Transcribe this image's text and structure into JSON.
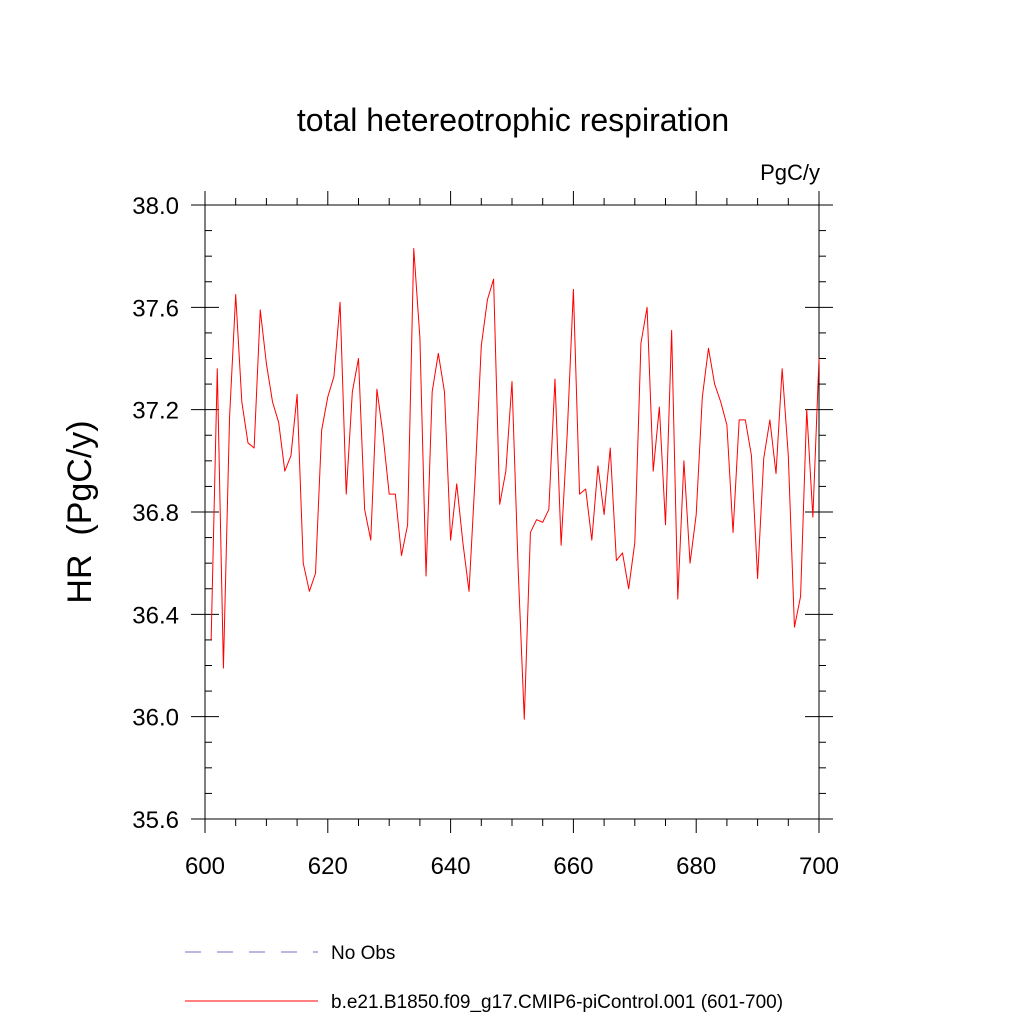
{
  "chart_data": {
    "type": "line",
    "title": "total hetereotrophic respiration",
    "units_label": "PgC/y",
    "ylabel": "HR  (PgC/y)",
    "xlabel": "",
    "xlim": [
      600,
      700
    ],
    "ylim": [
      35.6,
      38.0
    ],
    "x_ticks": [
      600,
      620,
      640,
      660,
      680,
      700
    ],
    "x_tick_labels": [
      "600",
      "620",
      "640",
      "660",
      "680",
      "700"
    ],
    "y_ticks": [
      35.6,
      36.0,
      36.4,
      36.8,
      37.2,
      37.6,
      38.0
    ],
    "y_tick_labels": [
      "35.6",
      "36.0",
      "36.4",
      "36.8",
      "37.2",
      "37.6",
      "38.0"
    ],
    "x_minor_step": 5,
    "y_minor_step": 0.1,
    "grid": false,
    "legend_position": "bottom",
    "series": [
      {
        "name": "No Obs",
        "color": "#7b68c8",
        "dash": "dashed",
        "x": [],
        "values": []
      },
      {
        "name": "b.e21.B1850.f09_g17.CMIP6-piControl.001 (601-700)",
        "color": "#ff0000",
        "dash": "solid",
        "x": [
          601,
          602,
          603,
          604,
          605,
          606,
          607,
          608,
          609,
          610,
          611,
          612,
          613,
          614,
          615,
          616,
          617,
          618,
          619,
          620,
          621,
          622,
          623,
          624,
          625,
          626,
          627,
          628,
          629,
          630,
          631,
          632,
          633,
          634,
          635,
          636,
          637,
          638,
          639,
          640,
          641,
          642,
          643,
          644,
          645,
          646,
          647,
          648,
          649,
          650,
          651,
          652,
          653,
          654,
          655,
          656,
          657,
          658,
          659,
          660,
          661,
          662,
          663,
          664,
          665,
          666,
          667,
          668,
          669,
          670,
          671,
          672,
          673,
          674,
          675,
          676,
          677,
          678,
          679,
          680,
          681,
          682,
          683,
          684,
          685,
          686,
          687,
          688,
          689,
          690,
          691,
          692,
          693,
          694,
          695,
          696,
          697,
          698,
          699,
          700
        ],
        "values": [
          36.3,
          37.36,
          36.19,
          37.17,
          37.65,
          37.23,
          37.07,
          37.05,
          37.59,
          37.38,
          37.23,
          37.15,
          36.96,
          37.02,
          37.26,
          36.6,
          36.49,
          36.56,
          37.12,
          37.25,
          37.33,
          37.62,
          36.87,
          37.27,
          37.4,
          36.81,
          36.69,
          37.28,
          37.1,
          36.87,
          36.87,
          36.63,
          36.75,
          37.83,
          37.48,
          36.55,
          37.27,
          37.42,
          37.27,
          36.69,
          36.91,
          36.68,
          36.49,
          36.94,
          37.45,
          37.63,
          37.71,
          36.83,
          36.96,
          37.31,
          36.58,
          35.99,
          36.72,
          36.77,
          36.76,
          36.81,
          37.32,
          36.67,
          37.11,
          37.67,
          36.87,
          36.89,
          36.69,
          36.98,
          36.79,
          37.05,
          36.61,
          36.64,
          36.5,
          36.68,
          37.46,
          37.6,
          36.96,
          37.21,
          36.75,
          37.51,
          36.46,
          37.0,
          36.6,
          36.79,
          37.25,
          37.44,
          37.3,
          37.23,
          37.14,
          36.72,
          37.16,
          37.16,
          37.02,
          36.54,
          37.01,
          37.16,
          36.95,
          37.36,
          37.02,
          36.35,
          36.47,
          37.2,
          36.78,
          37.4
        ]
      }
    ]
  }
}
